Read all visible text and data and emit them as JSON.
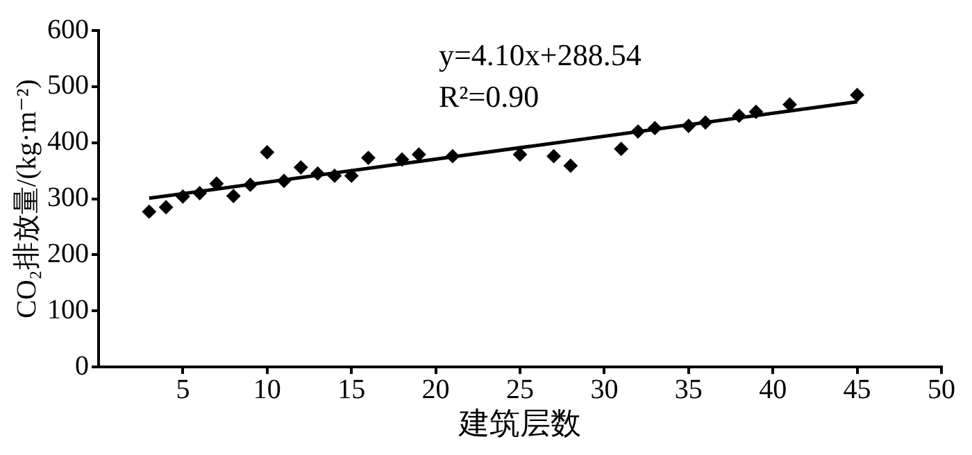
{
  "chart_data": {
    "type": "scatter",
    "xlabel": "建筑层数",
    "ylabel": "CO₂排放量/(kg·m⁻²)",
    "annotations": [
      "y=4.10x+288.54",
      "R²=0.90"
    ],
    "xlim": [
      0,
      50
    ],
    "xticks": [
      5,
      10,
      15,
      20,
      25,
      30,
      35,
      40,
      45,
      50
    ],
    "ylim": [
      0,
      600
    ],
    "yticks": [
      0,
      100,
      200,
      300,
      400,
      500,
      600
    ],
    "grid": false,
    "legend": false,
    "marker": "diamond",
    "series": [
      {
        "color": "#000000",
        "x": [
          3,
          4,
          5,
          6,
          7,
          8,
          9,
          10,
          11,
          12,
          13,
          14,
          15,
          16,
          18,
          19,
          21,
          25,
          27,
          28,
          31,
          32,
          33,
          35,
          36,
          38,
          39,
          41,
          45
        ],
        "values": [
          277,
          285,
          304,
          310,
          327,
          305,
          325,
          383,
          332,
          356,
          345,
          341,
          341,
          373,
          370,
          379,
          376,
          379,
          376,
          359,
          389,
          420,
          426,
          430,
          436,
          448,
          455,
          468,
          485
        ]
      },
      {
        "type": "line",
        "marker": "none",
        "color": "#000000",
        "x": [
          3,
          45
        ],
        "values": [
          301,
          473
        ]
      }
    ]
  }
}
